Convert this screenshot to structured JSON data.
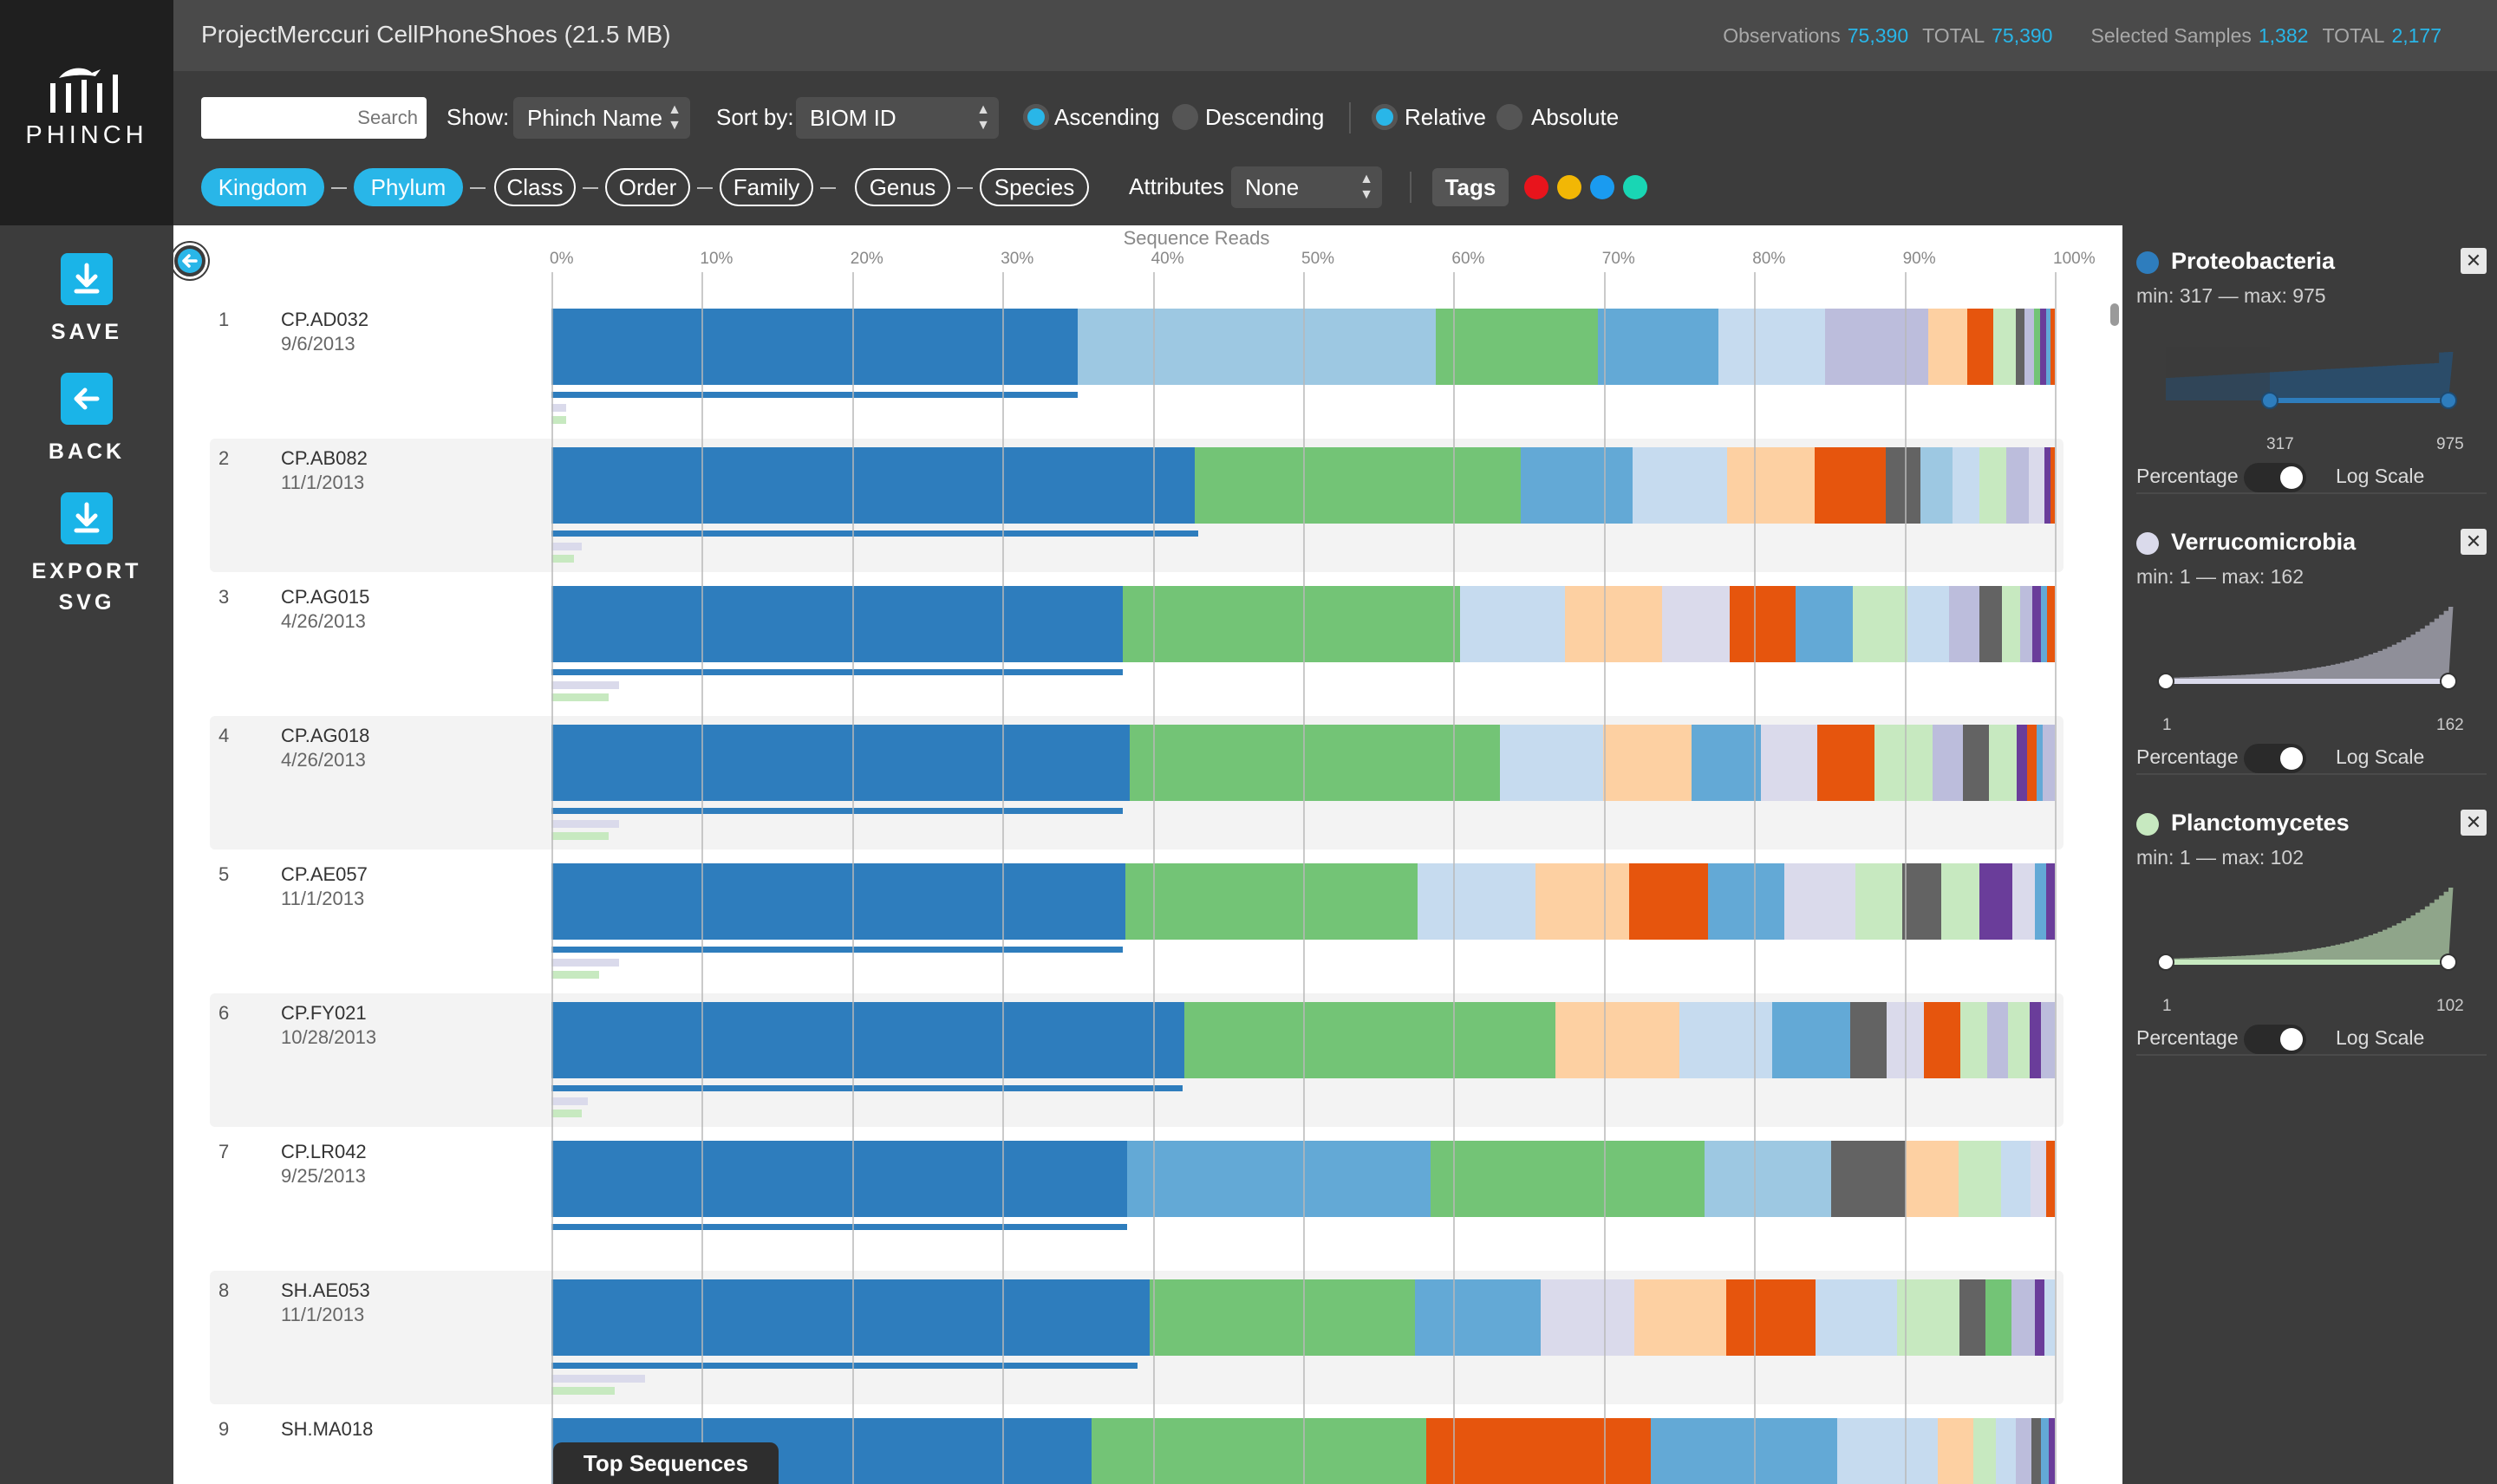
{
  "app": {
    "logo_text": "PHINCH"
  },
  "sidebar": {
    "save_label": "SAVE",
    "back_label": "BACK",
    "export_label_1": "EXPORT",
    "export_label_2": "SVG"
  },
  "header": {
    "file_title": "ProjectMerccuri CellPhoneShoes (21.5 MB)",
    "obs_label": "Observations",
    "obs_value": "75,390",
    "obs_total_label": "TOTAL",
    "obs_total_value": "75,390",
    "samples_label": "Selected Samples",
    "samples_value": "1,382",
    "samples_total_label": "TOTAL",
    "samples_total_value": "2,177"
  },
  "toolbar": {
    "search_placeholder": "Search",
    "show_label": "Show:",
    "show_value": "Phinch Name",
    "sortby_label": "Sort by:",
    "sortby_value": "BIOM ID",
    "ascending_label": "Ascending",
    "descending_label": "Descending",
    "relative_label": "Relative",
    "absolute_label": "Absolute",
    "order_selected": "Ascending",
    "mode_selected": "Relative",
    "ranks": [
      {
        "label": "Kingdom",
        "active": true
      },
      {
        "label": "Phylum",
        "active": true
      },
      {
        "label": "Class",
        "active": false
      },
      {
        "label": "Order",
        "active": false
      },
      {
        "label": "Family",
        "active": false
      },
      {
        "label": "Genus",
        "active": false
      },
      {
        "label": "Species",
        "active": false
      }
    ],
    "attributes_label": "Attributes",
    "attributes_value": "None",
    "tags_label": "Tags",
    "tag_colors": [
      "#e8141c",
      "#f2b705",
      "#1a9bf0",
      "#19d6b4"
    ]
  },
  "chart": {
    "axis_title": "Sequence Reads",
    "ticks": [
      "0%",
      "10%",
      "20%",
      "30%",
      "40%",
      "50%",
      "60%",
      "70%",
      "80%",
      "90%",
      "100%"
    ],
    "bottom_tab": "Top Sequences"
  },
  "palette": {
    "blue": "#2e7dbd",
    "ltblue": "#9dc8e2",
    "green": "#73c476",
    "mdblue": "#63a9d6",
    "pale": "#c6dbef",
    "lav": "#bcbddc",
    "peach": "#fdd0a2",
    "orange": "#e6550d",
    "pgreen": "#c7e9c0",
    "grey": "#636363",
    "purple": "#6a3d9a",
    "plav": "#dadaeb"
  },
  "samples": [
    {
      "num": "1",
      "id": "CP.AD032",
      "date": "9/6/2013",
      "segments": [
        [
          "blue",
          35
        ],
        [
          "ltblue",
          23.8
        ],
        [
          "green",
          10.8
        ],
        [
          "mdblue",
          8
        ],
        [
          "pale",
          7.1
        ],
        [
          "lav",
          6.9
        ],
        [
          "peach",
          2.6
        ],
        [
          "orange",
          1.7
        ],
        [
          "pgreen",
          1.5
        ],
        [
          "grey",
          0.6
        ],
        [
          "lav",
          0.6
        ],
        [
          "green",
          0.4
        ],
        [
          "purple",
          0.4
        ],
        [
          "mdblue",
          0.3
        ],
        [
          "orange",
          0.3
        ]
      ],
      "minibars": [
        [
          "blue",
          35
        ],
        [
          "plav",
          1
        ],
        [
          "pgreen",
          1
        ]
      ]
    },
    {
      "num": "2",
      "id": "CP.AB082",
      "date": "11/1/2013",
      "segments": [
        [
          "blue",
          42.6
        ],
        [
          "green",
          21.6
        ],
        [
          "mdblue",
          7.4
        ],
        [
          "pale",
          6.3
        ],
        [
          "peach",
          5.8
        ],
        [
          "orange",
          4.7
        ],
        [
          "grey",
          2.3
        ],
        [
          "ltblue",
          2.1
        ],
        [
          "pale",
          1.8
        ],
        [
          "pgreen",
          1.8
        ],
        [
          "lav",
          1.5
        ],
        [
          "plav",
          1
        ],
        [
          "purple",
          0.4
        ],
        [
          "orange",
          0.3
        ]
      ],
      "minibars": [
        [
          "blue",
          43
        ],
        [
          "plav",
          2
        ],
        [
          "pgreen",
          1.5
        ]
      ]
    },
    {
      "num": "3",
      "id": "CP.AG015",
      "date": "4/26/2013",
      "segments": [
        [
          "blue",
          37.9
        ],
        [
          "green",
          22.4
        ],
        [
          "pale",
          7
        ],
        [
          "peach",
          6.4
        ],
        [
          "plav",
          4.5
        ],
        [
          "orange",
          4.4
        ],
        [
          "mdblue",
          3.8
        ],
        [
          "pgreen",
          3.6
        ],
        [
          "pale",
          2.8
        ],
        [
          "lav",
          2
        ],
        [
          "grey",
          1.5
        ],
        [
          "pgreen",
          1.2
        ],
        [
          "lav",
          0.8
        ],
        [
          "purple",
          0.6
        ],
        [
          "mdblue",
          0.4
        ],
        [
          "orange",
          0.5
        ]
      ],
      "minibars": [
        [
          "blue",
          38
        ],
        [
          "plav",
          4.5
        ],
        [
          "pgreen",
          3.8
        ]
      ]
    },
    {
      "num": "4",
      "id": "CP.AG018",
      "date": "4/26/2013",
      "segments": [
        [
          "blue",
          37.9
        ],
        [
          "green",
          24.3
        ],
        [
          "pale",
          6.8
        ],
        [
          "peach",
          5.8
        ],
        [
          "mdblue",
          4.5
        ],
        [
          "plav",
          3.7
        ],
        [
          "orange",
          3.8
        ],
        [
          "pgreen",
          3.8
        ],
        [
          "lav",
          2
        ],
        [
          "grey",
          1.7
        ],
        [
          "pgreen",
          1.8
        ],
        [
          "purple",
          0.7
        ],
        [
          "orange",
          0.6
        ],
        [
          "mdblue",
          0.4
        ],
        [
          "lav",
          0.8
        ]
      ],
      "minibars": [
        [
          "blue",
          38
        ],
        [
          "plav",
          4.5
        ],
        [
          "pgreen",
          3.8
        ]
      ]
    },
    {
      "num": "5",
      "id": "CP.AE057",
      "date": "11/1/2013",
      "segments": [
        [
          "blue",
          38
        ],
        [
          "green",
          19.4
        ],
        [
          "pale",
          7.8
        ],
        [
          "peach",
          6.2
        ],
        [
          "orange",
          5.2
        ],
        [
          "mdblue",
          5.1
        ],
        [
          "plav",
          4.7
        ],
        [
          "pgreen",
          3.1
        ],
        [
          "grey",
          2.6
        ],
        [
          "pgreen",
          2.5
        ],
        [
          "purple",
          2.2
        ],
        [
          "plav",
          1.5
        ],
        [
          "mdblue",
          0.7
        ],
        [
          "purple",
          0.6
        ]
      ],
      "minibars": [
        [
          "blue",
          38
        ],
        [
          "plav",
          4.5
        ],
        [
          "pgreen",
          3.2
        ]
      ]
    },
    {
      "num": "6",
      "id": "CP.FY021",
      "date": "10/28/2013",
      "segments": [
        [
          "blue",
          42.1
        ],
        [
          "green",
          24.7
        ],
        [
          "peach",
          8.2
        ],
        [
          "pale",
          6.2
        ],
        [
          "mdblue",
          5.2
        ],
        [
          "grey",
          2.4
        ],
        [
          "plav",
          2.5
        ],
        [
          "orange",
          2.4
        ],
        [
          "pgreen",
          1.8
        ],
        [
          "lav",
          1.4
        ],
        [
          "pgreen",
          1.4
        ],
        [
          "purple",
          0.8
        ],
        [
          "lav",
          0.9
        ]
      ],
      "minibars": [
        [
          "blue",
          42
        ],
        [
          "plav",
          2.4
        ],
        [
          "pgreen",
          2
        ]
      ]
    },
    {
      "num": "7",
      "id": "CP.LR042",
      "date": "9/25/2013",
      "segments": [
        [
          "blue",
          38.3
        ],
        [
          "mdblue",
          20.2
        ],
        [
          "green",
          18.2
        ],
        [
          "ltblue",
          8.4
        ],
        [
          "grey",
          5
        ],
        [
          "peach",
          3.5
        ],
        [
          "pgreen",
          2.8
        ],
        [
          "pale",
          2
        ],
        [
          "plav",
          1
        ],
        [
          "orange",
          0.6
        ]
      ],
      "minibars": [
        [
          "blue",
          38.3
        ]
      ]
    },
    {
      "num": "8",
      "id": "SH.AE053",
      "date": "11/1/2013",
      "segments": [
        [
          "blue",
          39
        ],
        [
          "green",
          17.3
        ],
        [
          "mdblue",
          8.2
        ],
        [
          "plav",
          6.1
        ],
        [
          "peach",
          6
        ],
        [
          "orange",
          5.8
        ],
        [
          "pale",
          5.3
        ],
        [
          "pgreen",
          4.1
        ],
        [
          "grey",
          1.7
        ],
        [
          "green",
          1.7
        ],
        [
          "lav",
          1.5
        ],
        [
          "purple",
          0.6
        ],
        [
          "pale",
          0.7
        ]
      ],
      "minibars": [
        [
          "blue",
          39
        ],
        [
          "plav",
          6.2
        ],
        [
          "pgreen",
          4.2
        ]
      ]
    },
    {
      "num": "9",
      "id": "SH.MA018",
      "date": "",
      "segments": [
        [
          "blue",
          35
        ],
        [
          "green",
          21.7
        ],
        [
          "orange",
          14.5
        ],
        [
          "mdblue",
          12.1
        ],
        [
          "pale",
          6.5
        ],
        [
          "peach",
          2.3
        ],
        [
          "pgreen",
          1.5
        ],
        [
          "pale",
          1.3
        ],
        [
          "lav",
          1
        ],
        [
          "grey",
          0.6
        ],
        [
          "mdblue",
          0.5
        ],
        [
          "purple",
          0.4
        ]
      ],
      "minibars": []
    }
  ],
  "filters": [
    {
      "name": "Proteobacteria",
      "range": "min: 317 — max: 975",
      "lo": "317",
      "hi": "975",
      "dot": "#2e7dbd",
      "fill": "#2b4c69",
      "line": "#2e7dbd",
      "shape": "proteo",
      "pct_label": "Percentage",
      "log_label": "Log Scale"
    },
    {
      "name": "Verrucomicrobia",
      "range": "min: 1 — max: 162",
      "lo": "1",
      "hi": "162",
      "dot": "#dadaeb",
      "fill": "#8f8f99",
      "line": "#dadaeb",
      "shape": "exp",
      "pct_label": "Percentage",
      "log_label": "Log Scale"
    },
    {
      "name": "Planctomycetes",
      "range": "min: 1 — max: 102",
      "lo": "1",
      "hi": "102",
      "dot": "#c7e9c0",
      "fill": "#8fa58a",
      "line": "#c7e9c0",
      "shape": "exp",
      "pct_label": "Percentage",
      "log_label": "Log Scale"
    }
  ]
}
